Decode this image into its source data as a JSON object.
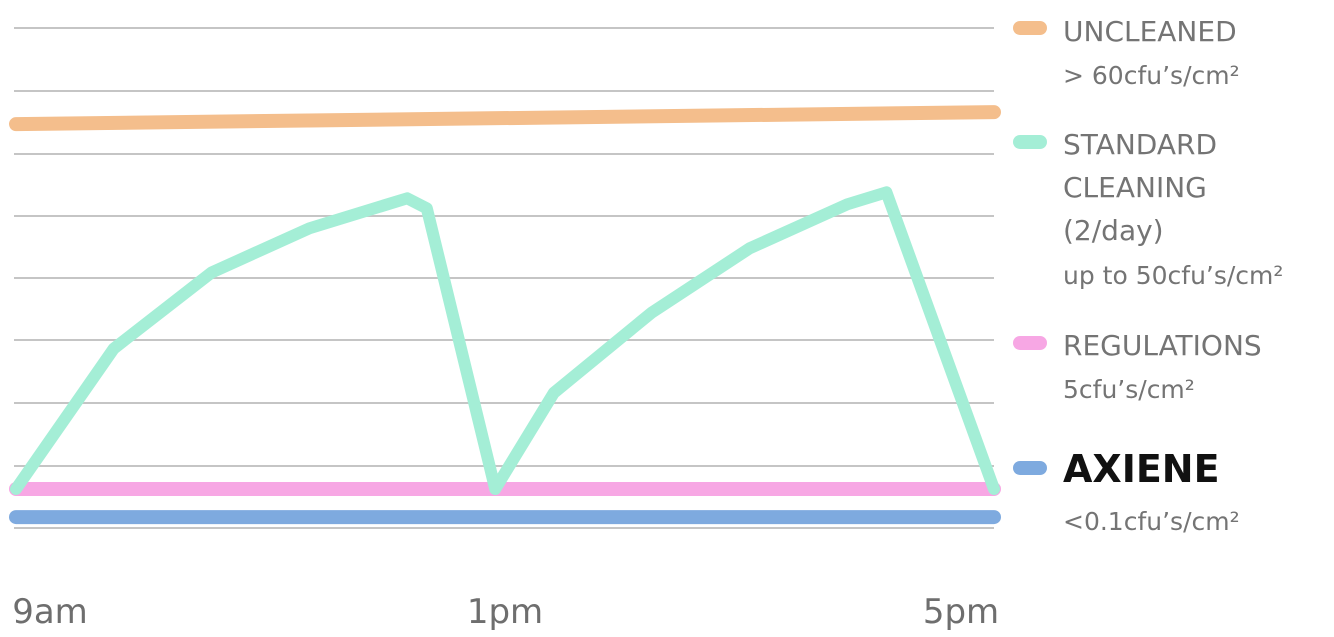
{
  "chart_data": {
    "type": "line",
    "title": "",
    "xlabel": "",
    "ylabel": "",
    "x_ticks": [
      "9am",
      "1pm",
      "5pm"
    ],
    "grid": true,
    "legend_placement": "right",
    "series": [
      {
        "name": "UNCLEANED",
        "sublabel": "> 60cfu’s/cm²",
        "color": "#f4be8c",
        "points": [
          [
            0,
            0.91
          ],
          [
            1,
            0.94
          ]
        ]
      },
      {
        "name": "STANDARD CLEANING (2/day)",
        "name_lines": [
          "STANDARD",
          "CLEANING",
          "(2/day)"
        ],
        "sublabel": "up to 50cfu’s/cm²",
        "color": "#a4eed6",
        "points": [
          [
            0,
            0.0
          ],
          [
            0.1,
            0.35
          ],
          [
            0.2,
            0.54
          ],
          [
            0.3,
            0.65
          ],
          [
            0.4,
            0.725
          ],
          [
            0.42,
            0.7
          ],
          [
            0.49,
            0.0
          ],
          [
            0.55,
            0.24
          ],
          [
            0.65,
            0.44
          ],
          [
            0.75,
            0.6
          ],
          [
            0.85,
            0.71
          ],
          [
            0.89,
            0.74
          ],
          [
            1.0,
            0.0
          ]
        ]
      },
      {
        "name": "REGULATIONS",
        "sublabel": "5cfu’s/cm²",
        "color": "#f7a7e4",
        "points": [
          [
            0,
            0.0
          ],
          [
            1,
            0.0
          ]
        ]
      },
      {
        "name": "AXIENE",
        "sublabel": "<0.1cfu’s/cm²",
        "color": "#7eaadf",
        "points": [
          [
            0,
            -0.07
          ],
          [
            1,
            -0.07
          ]
        ]
      }
    ]
  }
}
